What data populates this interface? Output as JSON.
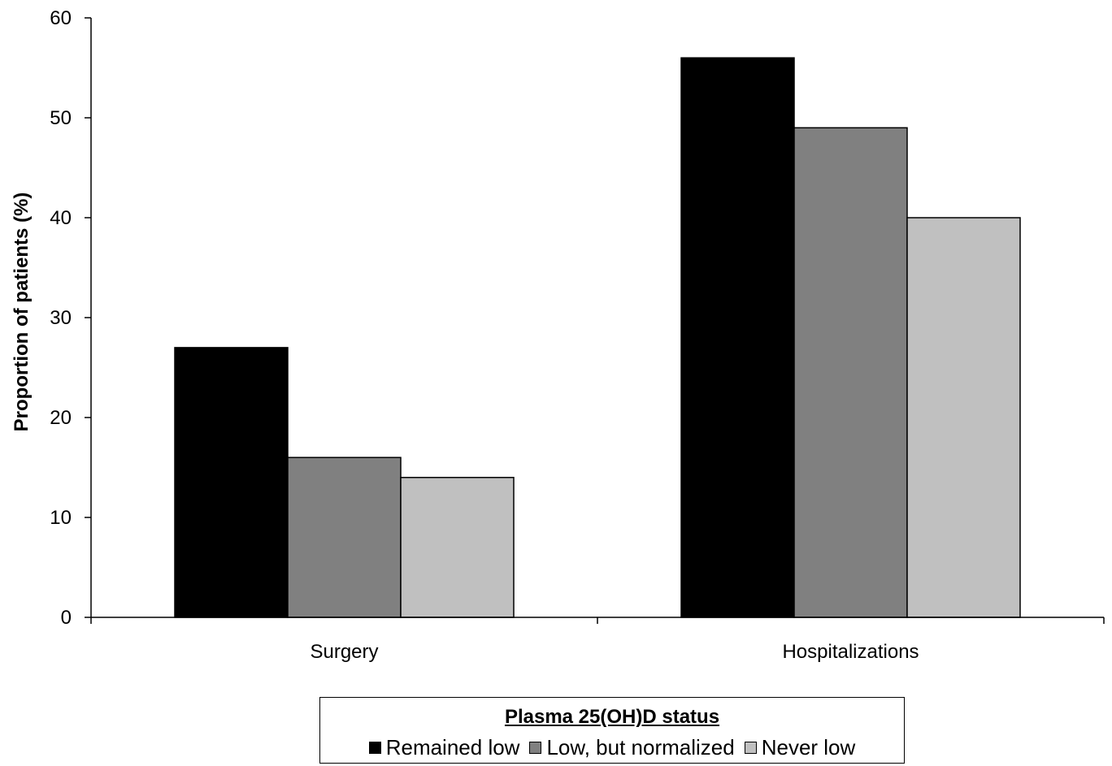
{
  "chart_data": {
    "type": "bar",
    "categories": [
      "Surgery",
      "Hospitalizations"
    ],
    "series": [
      {
        "name": "Remained low",
        "values": [
          27,
          56
        ],
        "color": "#000000"
      },
      {
        "name": "Low, but normalized",
        "values": [
          16,
          49
        ],
        "color": "#808080"
      },
      {
        "name": "Never low",
        "values": [
          14,
          40
        ],
        "color": "#c0c0c0"
      }
    ],
    "xlabel": "",
    "ylabel": "Proportion of patients (%)",
    "ylim": [
      0,
      60
    ],
    "yticks": [
      0,
      10,
      20,
      30,
      40,
      50,
      60
    ],
    "grid": false,
    "legend": {
      "title": "Plasma 25(OH)D status",
      "placement": "bottom-center"
    }
  }
}
